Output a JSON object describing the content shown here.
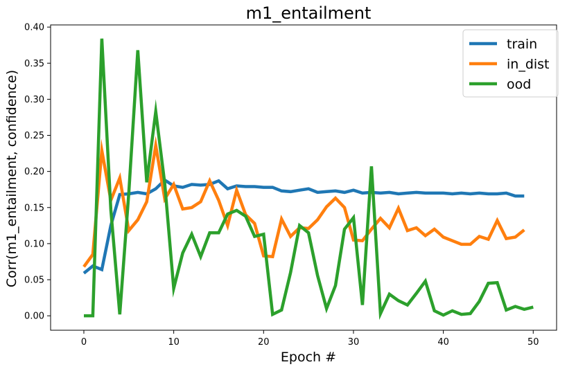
{
  "chart_data": {
    "type": "line",
    "title": "m1_entailment",
    "xlabel": "Epoch #",
    "ylabel": "Corr(m1_entailment, confidence)",
    "xlim": [
      -3.7,
      52.6
    ],
    "ylim": [
      -0.02,
      0.403
    ],
    "xticks": [
      0,
      10,
      20,
      30,
      40,
      50
    ],
    "yticks": [
      0.0,
      0.05,
      0.1,
      0.15,
      0.2,
      0.25,
      0.3,
      0.35,
      0.4
    ],
    "ytick_labels": [
      "0.00",
      "0.05",
      "0.10",
      "0.15",
      "0.20",
      "0.25",
      "0.30",
      "0.35",
      "0.40"
    ],
    "grid": false,
    "legend_position": "top-right",
    "series": [
      {
        "name": "train",
        "color": "#1f77b4",
        "x": [
          0,
          1,
          2,
          3,
          4,
          5,
          6,
          7,
          8,
          9,
          10,
          11,
          12,
          13,
          14,
          15,
          16,
          17,
          18,
          19,
          20,
          21,
          22,
          23,
          24,
          25,
          26,
          27,
          28,
          29,
          30,
          31,
          32,
          33,
          34,
          35,
          36,
          37,
          38,
          39,
          40,
          41,
          42,
          43,
          44,
          45,
          46,
          47,
          48,
          49
        ],
        "values": [
          0.059,
          0.069,
          0.064,
          0.125,
          0.168,
          0.169,
          0.171,
          0.169,
          0.176,
          0.188,
          0.18,
          0.178,
          0.182,
          0.181,
          0.182,
          0.187,
          0.176,
          0.18,
          0.179,
          0.179,
          0.178,
          0.178,
          0.173,
          0.172,
          0.174,
          0.176,
          0.171,
          0.172,
          0.173,
          0.171,
          0.174,
          0.17,
          0.171,
          0.17,
          0.171,
          0.169,
          0.17,
          0.171,
          0.17,
          0.17,
          0.17,
          0.169,
          0.17,
          0.169,
          0.17,
          0.169,
          0.169,
          0.17,
          0.166,
          0.166
        ]
      },
      {
        "name": "in_dist",
        "color": "#ff7f0e",
        "x": [
          0,
          1,
          2,
          3,
          4,
          5,
          6,
          7,
          8,
          9,
          10,
          11,
          12,
          13,
          14,
          15,
          16,
          17,
          18,
          19,
          20,
          21,
          22,
          23,
          24,
          25,
          26,
          27,
          28,
          29,
          30,
          31,
          32,
          33,
          34,
          35,
          36,
          37,
          38,
          39,
          40,
          41,
          42,
          43,
          44,
          45,
          46,
          47,
          48,
          49
        ],
        "values": [
          0.068,
          0.085,
          0.229,
          0.16,
          0.191,
          0.118,
          0.133,
          0.158,
          0.236,
          0.162,
          0.182,
          0.148,
          0.15,
          0.158,
          0.187,
          0.16,
          0.125,
          0.174,
          0.14,
          0.128,
          0.083,
          0.082,
          0.134,
          0.11,
          0.122,
          0.121,
          0.133,
          0.151,
          0.163,
          0.15,
          0.105,
          0.104,
          0.12,
          0.135,
          0.122,
          0.149,
          0.118,
          0.122,
          0.111,
          0.12,
          0.109,
          0.104,
          0.099,
          0.099,
          0.11,
          0.106,
          0.132,
          0.107,
          0.109,
          0.119
        ]
      },
      {
        "name": "ood",
        "color": "#2ca02c",
        "x": [
          0,
          1,
          2,
          3,
          4,
          5,
          6,
          7,
          8,
          9,
          10,
          11,
          12,
          13,
          14,
          15,
          16,
          17,
          18,
          19,
          20,
          21,
          22,
          23,
          24,
          25,
          26,
          27,
          28,
          29,
          30,
          31,
          32,
          33,
          34,
          35,
          36,
          37,
          38,
          39,
          40,
          41,
          42,
          43,
          44,
          45,
          46,
          47,
          48,
          49,
          50
        ],
        "values": [
          0.0,
          0.0,
          0.384,
          0.147,
          0.002,
          0.17,
          0.368,
          0.185,
          0.283,
          0.183,
          0.038,
          0.087,
          0.113,
          0.082,
          0.115,
          0.115,
          0.141,
          0.146,
          0.138,
          0.11,
          0.113,
          0.002,
          0.008,
          0.06,
          0.125,
          0.115,
          0.056,
          0.01,
          0.042,
          0.12,
          0.136,
          0.015,
          0.207,
          0.003,
          0.03,
          0.021,
          0.015,
          0.031,
          0.048,
          0.007,
          0.001,
          0.007,
          0.002,
          0.003,
          0.02,
          0.045,
          0.046,
          0.008,
          0.013,
          0.009,
          0.012
        ]
      }
    ]
  }
}
